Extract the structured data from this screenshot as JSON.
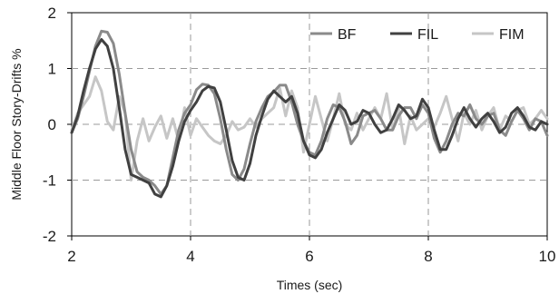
{
  "chart_data": {
    "type": "line",
    "title": "",
    "xlabel": "Times (sec)",
    "ylabel": "Middle Floor Story-Drifts %",
    "xlim": [
      2,
      10
    ],
    "ylim": [
      -2,
      2
    ],
    "x_ticks": [
      "2",
      "4",
      "6",
      "8",
      "10"
    ],
    "y_ticks": [
      "2",
      "1",
      "0",
      "-1",
      "-2"
    ],
    "grid": "dashed",
    "legend_position": "top-right",
    "series": [
      {
        "name": "BF",
        "color": "#8a8a8a",
        "points": [
          [
            2.0,
            -0.15
          ],
          [
            2.1,
            0.1
          ],
          [
            2.2,
            0.5
          ],
          [
            2.3,
            0.95
          ],
          [
            2.4,
            1.4
          ],
          [
            2.5,
            1.67
          ],
          [
            2.6,
            1.65
          ],
          [
            2.7,
            1.45
          ],
          [
            2.8,
            0.9
          ],
          [
            2.9,
            0.2
          ],
          [
            3.0,
            -0.45
          ],
          [
            3.1,
            -0.85
          ],
          [
            3.2,
            -0.95
          ],
          [
            3.3,
            -1.0
          ],
          [
            3.4,
            -1.1
          ],
          [
            3.5,
            -1.25
          ],
          [
            3.6,
            -1.1
          ],
          [
            3.7,
            -0.6
          ],
          [
            3.8,
            -0.1
          ],
          [
            3.9,
            0.2
          ],
          [
            4.0,
            0.35
          ],
          [
            4.1,
            0.62
          ],
          [
            4.2,
            0.72
          ],
          [
            4.3,
            0.7
          ],
          [
            4.4,
            0.55
          ],
          [
            4.5,
            0.1
          ],
          [
            4.6,
            -0.45
          ],
          [
            4.7,
            -0.9
          ],
          [
            4.8,
            -1.0
          ],
          [
            4.9,
            -0.8
          ],
          [
            5.0,
            -0.35
          ],
          [
            5.1,
            0.05
          ],
          [
            5.2,
            0.3
          ],
          [
            5.3,
            0.5
          ],
          [
            5.4,
            0.58
          ],
          [
            5.5,
            0.7
          ],
          [
            5.6,
            0.7
          ],
          [
            5.7,
            0.4
          ],
          [
            5.8,
            0.0
          ],
          [
            5.9,
            -0.3
          ],
          [
            6.0,
            -0.5
          ],
          [
            6.1,
            -0.55
          ],
          [
            6.2,
            -0.3
          ],
          [
            6.3,
            0.1
          ],
          [
            6.4,
            0.35
          ],
          [
            6.5,
            0.3
          ],
          [
            6.6,
            0.05
          ],
          [
            6.7,
            -0.35
          ],
          [
            6.8,
            -0.2
          ],
          [
            6.9,
            0.15
          ],
          [
            7.0,
            0.2
          ],
          [
            7.1,
            0.25
          ],
          [
            7.2,
            0.1
          ],
          [
            7.3,
            -0.1
          ],
          [
            7.4,
            -0.1
          ],
          [
            7.5,
            0.15
          ],
          [
            7.6,
            0.3
          ],
          [
            7.7,
            0.3
          ],
          [
            7.8,
            0.1
          ],
          [
            7.9,
            0.35
          ],
          [
            8.0,
            0.2
          ],
          [
            8.1,
            -0.25
          ],
          [
            8.2,
            -0.5
          ],
          [
            8.3,
            -0.3
          ],
          [
            8.4,
            0.0
          ],
          [
            8.5,
            0.2
          ],
          [
            8.6,
            0.15
          ],
          [
            8.7,
            0.35
          ],
          [
            8.8,
            0.1
          ],
          [
            8.9,
            0.0
          ],
          [
            9.0,
            0.15
          ],
          [
            9.1,
            0.2
          ],
          [
            9.2,
            -0.1
          ],
          [
            9.3,
            -0.2
          ],
          [
            9.4,
            0.05
          ],
          [
            9.5,
            0.25
          ],
          [
            9.6,
            0.1
          ],
          [
            9.7,
            -0.1
          ],
          [
            9.8,
            0.1
          ],
          [
            9.9,
            0.05
          ],
          [
            10.0,
            -0.2
          ]
        ]
      },
      {
        "name": "FIL",
        "color": "#404040",
        "points": [
          [
            2.0,
            -0.15
          ],
          [
            2.1,
            0.15
          ],
          [
            2.2,
            0.6
          ],
          [
            2.3,
            1.0
          ],
          [
            2.4,
            1.35
          ],
          [
            2.5,
            1.52
          ],
          [
            2.6,
            1.4
          ],
          [
            2.7,
            1.0
          ],
          [
            2.8,
            0.3
          ],
          [
            2.9,
            -0.45
          ],
          [
            3.0,
            -0.9
          ],
          [
            3.1,
            -0.95
          ],
          [
            3.2,
            -1.0
          ],
          [
            3.3,
            -1.05
          ],
          [
            3.4,
            -1.25
          ],
          [
            3.5,
            -1.3
          ],
          [
            3.6,
            -1.1
          ],
          [
            3.7,
            -0.75
          ],
          [
            3.8,
            -0.3
          ],
          [
            3.9,
            0.05
          ],
          [
            4.0,
            0.25
          ],
          [
            4.1,
            0.4
          ],
          [
            4.2,
            0.6
          ],
          [
            4.3,
            0.68
          ],
          [
            4.4,
            0.65
          ],
          [
            4.5,
            0.4
          ],
          [
            4.6,
            -0.1
          ],
          [
            4.7,
            -0.65
          ],
          [
            4.8,
            -0.95
          ],
          [
            4.9,
            -1.0
          ],
          [
            5.0,
            -0.7
          ],
          [
            5.1,
            -0.2
          ],
          [
            5.2,
            0.15
          ],
          [
            5.3,
            0.45
          ],
          [
            5.4,
            0.6
          ],
          [
            5.5,
            0.5
          ],
          [
            5.6,
            0.4
          ],
          [
            5.7,
            0.5
          ],
          [
            5.8,
            0.2
          ],
          [
            5.9,
            -0.3
          ],
          [
            6.0,
            -0.55
          ],
          [
            6.1,
            -0.6
          ],
          [
            6.2,
            -0.45
          ],
          [
            6.3,
            -0.15
          ],
          [
            6.4,
            0.1
          ],
          [
            6.5,
            0.35
          ],
          [
            6.6,
            0.25
          ],
          [
            6.7,
            0.0
          ],
          [
            6.8,
            0.05
          ],
          [
            6.9,
            0.25
          ],
          [
            7.0,
            0.2
          ],
          [
            7.1,
            0.0
          ],
          [
            7.2,
            -0.15
          ],
          [
            7.3,
            -0.1
          ],
          [
            7.4,
            0.1
          ],
          [
            7.5,
            0.35
          ],
          [
            7.6,
            0.25
          ],
          [
            7.7,
            0.1
          ],
          [
            7.8,
            0.15
          ],
          [
            7.9,
            0.45
          ],
          [
            8.0,
            0.3
          ],
          [
            8.1,
            -0.1
          ],
          [
            8.2,
            -0.45
          ],
          [
            8.3,
            -0.45
          ],
          [
            8.4,
            -0.2
          ],
          [
            8.5,
            0.1
          ],
          [
            8.6,
            0.3
          ],
          [
            8.7,
            0.1
          ],
          [
            8.8,
            -0.05
          ],
          [
            8.9,
            0.1
          ],
          [
            9.0,
            0.2
          ],
          [
            9.1,
            0.05
          ],
          [
            9.2,
            -0.15
          ],
          [
            9.3,
            -0.05
          ],
          [
            9.4,
            0.2
          ],
          [
            9.5,
            0.3
          ],
          [
            9.6,
            0.15
          ],
          [
            9.7,
            -0.05
          ],
          [
            9.8,
            -0.1
          ],
          [
            9.9,
            0.05
          ],
          [
            10.0,
            0.0
          ]
        ]
      },
      {
        "name": "FIM",
        "color": "#c6c6c6",
        "points": [
          [
            2.0,
            -0.1
          ],
          [
            2.1,
            0.2
          ],
          [
            2.2,
            0.35
          ],
          [
            2.3,
            0.5
          ],
          [
            2.4,
            0.85
          ],
          [
            2.5,
            0.6
          ],
          [
            2.6,
            0.05
          ],
          [
            2.7,
            -0.1
          ],
          [
            2.8,
            0.5
          ],
          [
            2.9,
            0.2
          ],
          [
            3.0,
            -1.0
          ],
          [
            3.1,
            -0.3
          ],
          [
            3.2,
            0.1
          ],
          [
            3.3,
            -0.3
          ],
          [
            3.4,
            -0.05
          ],
          [
            3.5,
            0.15
          ],
          [
            3.6,
            -0.25
          ],
          [
            3.7,
            0.1
          ],
          [
            3.8,
            -0.3
          ],
          [
            3.9,
            0.3
          ],
          [
            4.0,
            -0.2
          ],
          [
            4.1,
            0.1
          ],
          [
            4.2,
            -0.05
          ],
          [
            4.3,
            -0.2
          ],
          [
            4.4,
            -0.3
          ],
          [
            4.5,
            -0.35
          ],
          [
            4.6,
            -0.2
          ],
          [
            4.7,
            0.05
          ],
          [
            4.8,
            -0.1
          ],
          [
            4.9,
            -0.05
          ],
          [
            5.0,
            0.1
          ],
          [
            5.1,
            -0.05
          ],
          [
            5.2,
            0.1
          ],
          [
            5.3,
            0.2
          ],
          [
            5.4,
            0.3
          ],
          [
            5.5,
            0.65
          ],
          [
            5.6,
            0.15
          ],
          [
            5.7,
            0.6
          ],
          [
            5.8,
            0.3
          ],
          [
            5.9,
            -0.5
          ],
          [
            6.0,
            0.0
          ],
          [
            6.1,
            0.5
          ],
          [
            6.2,
            0.1
          ],
          [
            6.3,
            -0.3
          ],
          [
            6.4,
            0.1
          ],
          [
            6.5,
            0.55
          ],
          [
            6.6,
            0.0
          ],
          [
            6.7,
            -0.1
          ],
          [
            6.8,
            0.2
          ],
          [
            6.9,
            -0.1
          ],
          [
            7.0,
            0.1
          ],
          [
            7.1,
            0.3
          ],
          [
            7.2,
            0.1
          ],
          [
            7.3,
            0.55
          ],
          [
            7.4,
            -0.1
          ],
          [
            7.5,
            0.3
          ],
          [
            7.6,
            -0.35
          ],
          [
            7.7,
            0.15
          ],
          [
            7.8,
            -0.1
          ],
          [
            7.9,
            0.0
          ],
          [
            8.0,
            0.1
          ],
          [
            8.1,
            -0.05
          ],
          [
            8.2,
            0.2
          ],
          [
            8.3,
            0.5
          ],
          [
            8.4,
            0.1
          ],
          [
            8.5,
            -0.3
          ],
          [
            8.6,
            0.2
          ],
          [
            8.7,
            0.0
          ],
          [
            8.8,
            0.25
          ],
          [
            8.9,
            -0.1
          ],
          [
            9.0,
            0.15
          ],
          [
            9.1,
            0.3
          ],
          [
            9.2,
            -0.1
          ],
          [
            9.3,
            0.15
          ],
          [
            9.4,
            0.05
          ],
          [
            9.5,
            0.25
          ],
          [
            9.6,
            0.3
          ],
          [
            9.7,
            0.0
          ],
          [
            9.8,
            0.1
          ],
          [
            9.9,
            0.25
          ],
          [
            10.0,
            0.1
          ]
        ]
      }
    ]
  }
}
